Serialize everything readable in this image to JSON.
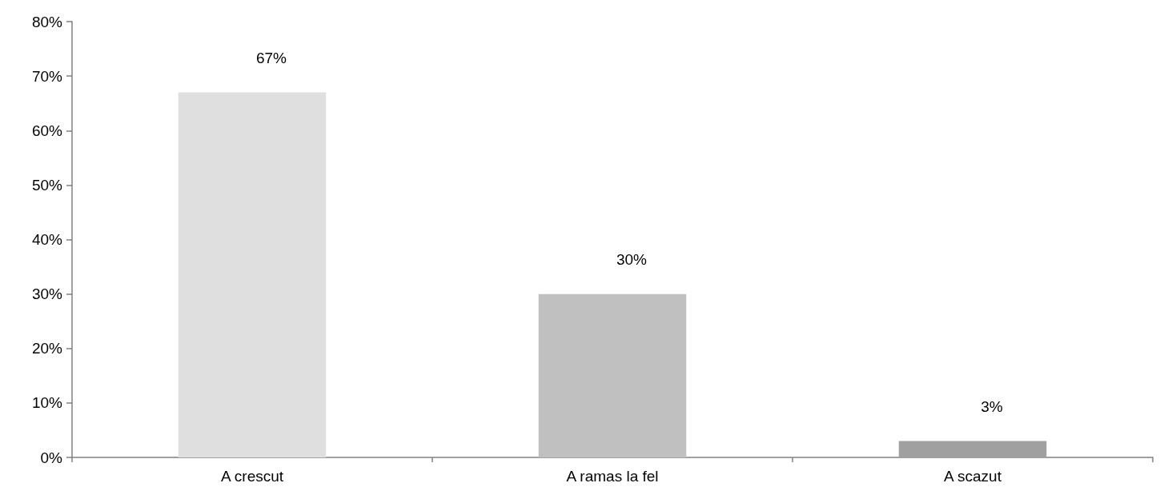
{
  "chart_data": {
    "type": "bar",
    "categories": [
      "A crescut",
      "A ramas la fel",
      "A scazut"
    ],
    "values": [
      67,
      30,
      3
    ],
    "colors": [
      "#dfdfdf",
      "#c0c0c0",
      "#a0a0a0"
    ],
    "value_labels": [
      "67%",
      "30%",
      "3%"
    ],
    "ylim": [
      0,
      80
    ],
    "yticks": [
      {
        "value": 0,
        "label": "0%"
      },
      {
        "value": 10,
        "label": "10%"
      },
      {
        "value": 20,
        "label": "20%"
      },
      {
        "value": 30,
        "label": "30%"
      },
      {
        "value": 40,
        "label": "40%"
      },
      {
        "value": 50,
        "label": "50%"
      },
      {
        "value": 60,
        "label": "60%"
      },
      {
        "value": 70,
        "label": "70%"
      },
      {
        "value": 80,
        "label": "80%"
      }
    ],
    "grid": false
  }
}
